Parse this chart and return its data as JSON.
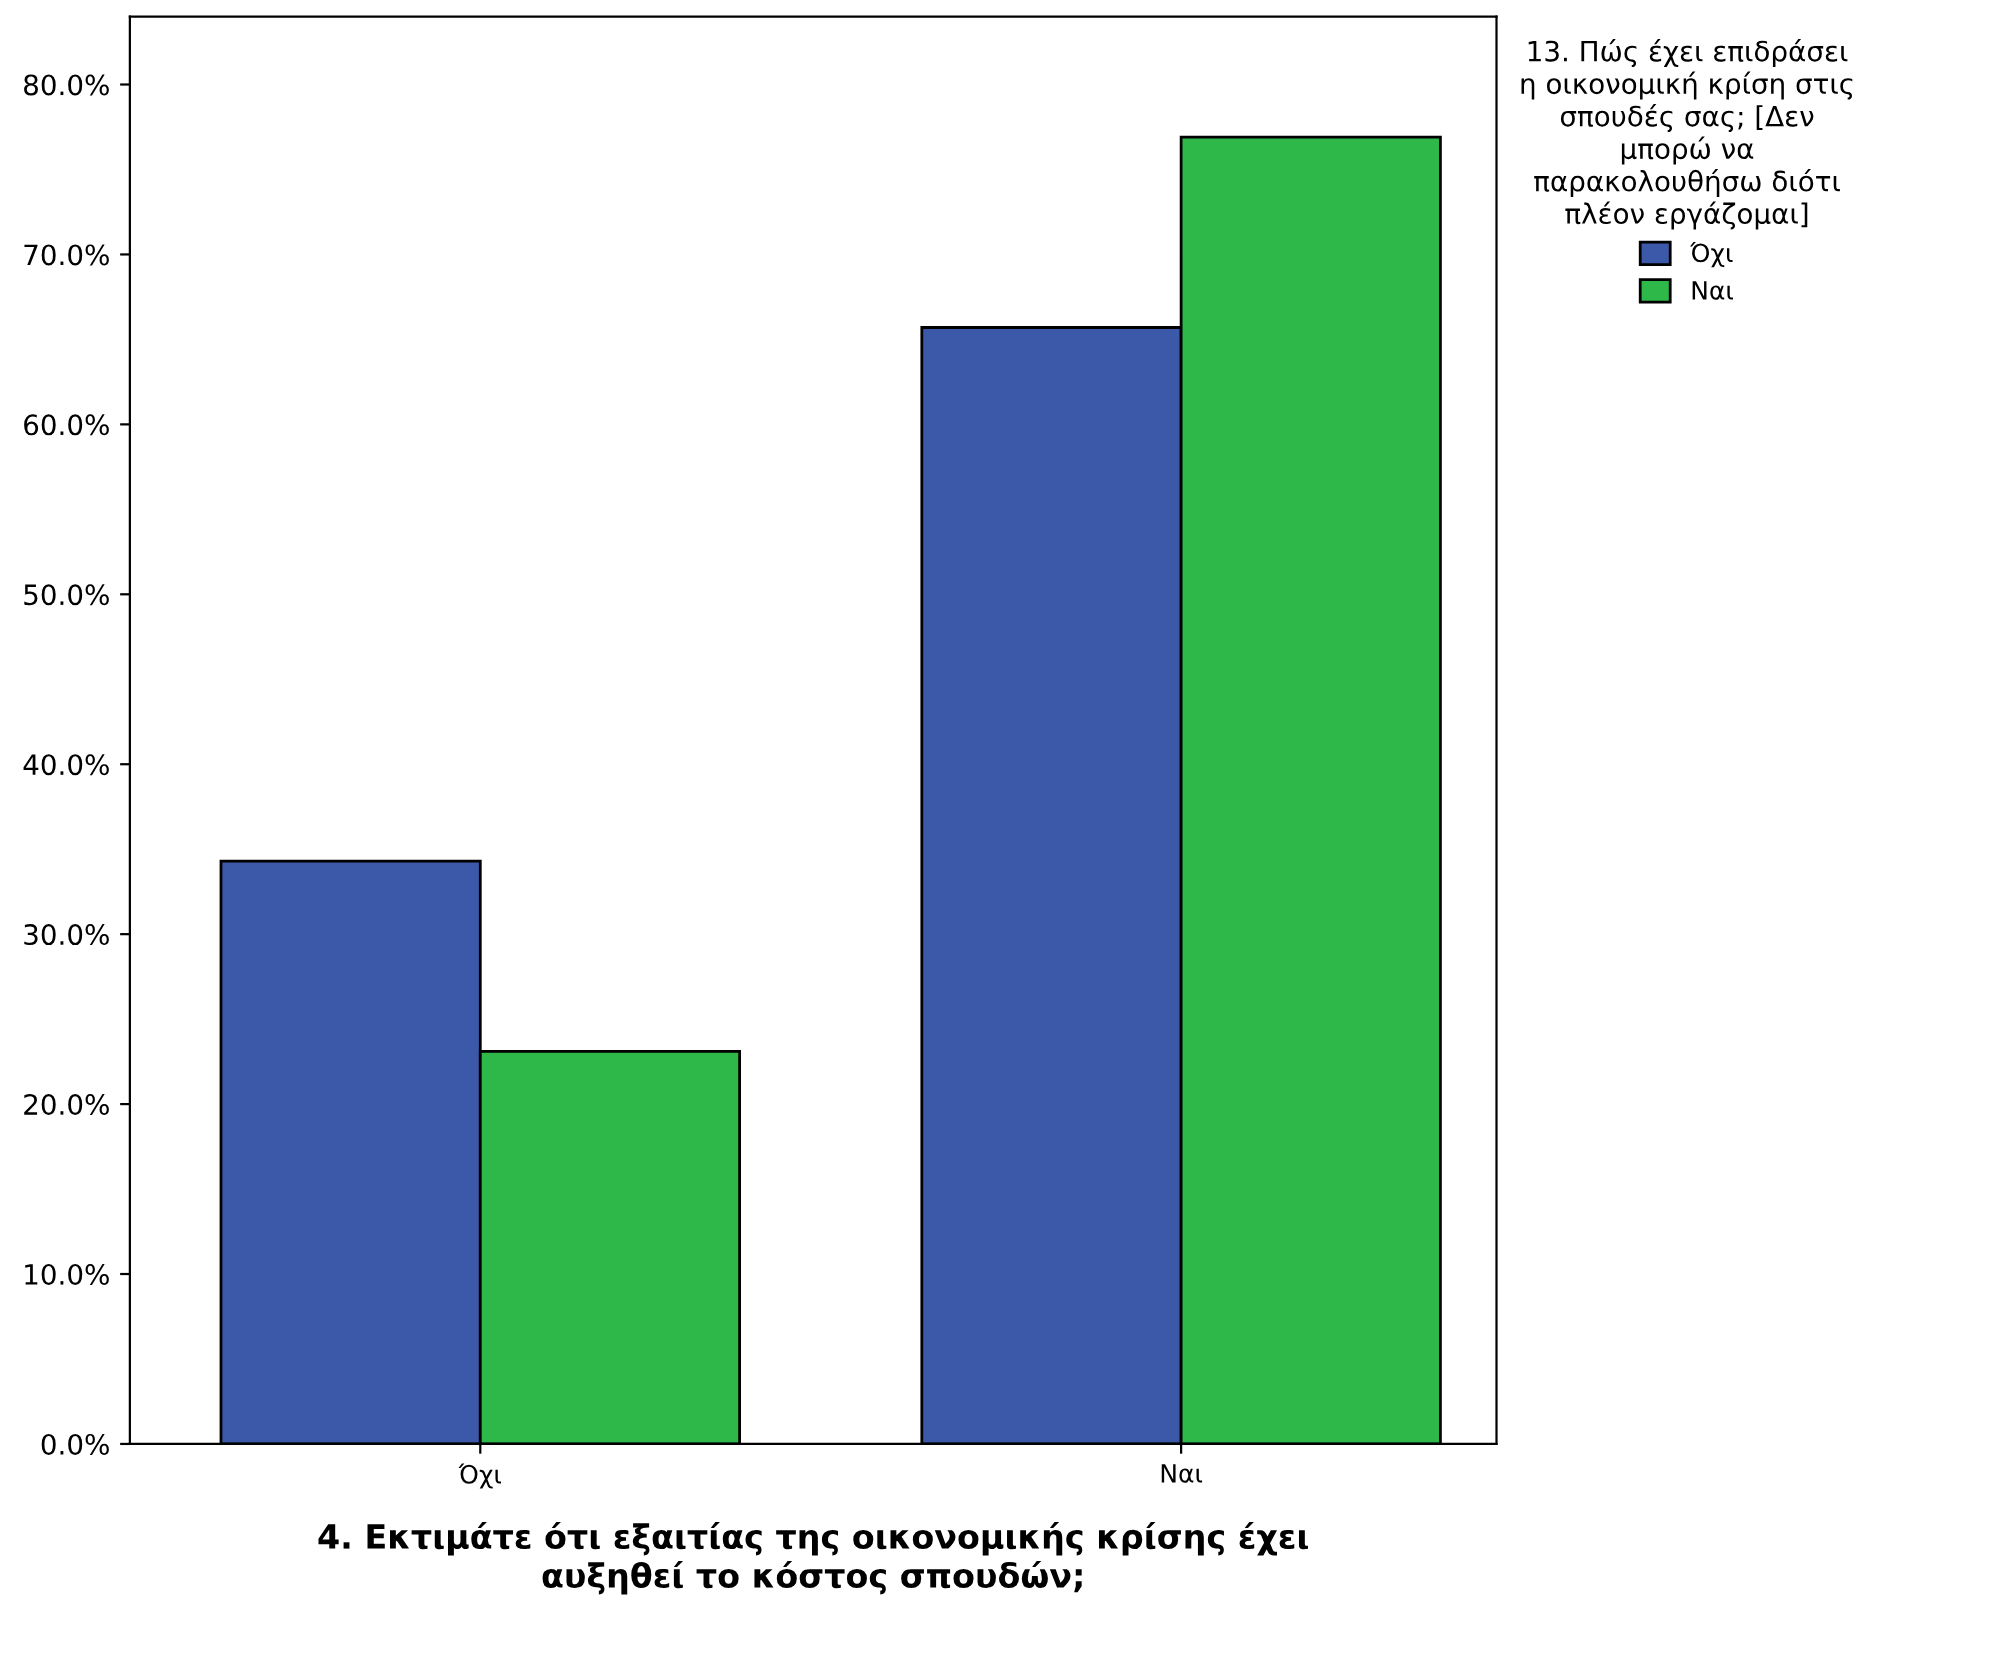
{
  "chart_data": {
    "type": "bar",
    "xlabel": "4. Εκτιμάτε ότι εξαιτίας της οικονομικής κρίσης έχει\nαυξηθεί το κόστος σπουδών;",
    "legend_title": "13. Πώς έχει επιδράσει\nη οικονομική κρίση στις\nσπουδές σας; [Δεν\nμπορώ να\nπαρακολουθήσω διότι\nπλέον εργάζομαι]",
    "categories": [
      "Όχι",
      "Ναι"
    ],
    "series": [
      {
        "name": "Όχι",
        "color": "#3c58a8",
        "values": [
          34.3,
          65.7
        ]
      },
      {
        "name": "Ναι",
        "color": "#2eb84a",
        "values": [
          23.1,
          76.9
        ]
      }
    ],
    "ylim": [
      0,
      84
    ],
    "yticks": [
      {
        "value": 0,
        "label": "0.0%"
      },
      {
        "value": 10,
        "label": "10.0%"
      },
      {
        "value": 20,
        "label": "20.0%"
      },
      {
        "value": 30,
        "label": "30.0%"
      },
      {
        "value": 40,
        "label": "40.0%"
      },
      {
        "value": 50,
        "label": "50.0%"
      },
      {
        "value": 60,
        "label": "60.0%"
      },
      {
        "value": 70,
        "label": "70.0%"
      },
      {
        "value": 80,
        "label": "80.0%"
      }
    ],
    "grid": false,
    "legend": "top right"
  }
}
